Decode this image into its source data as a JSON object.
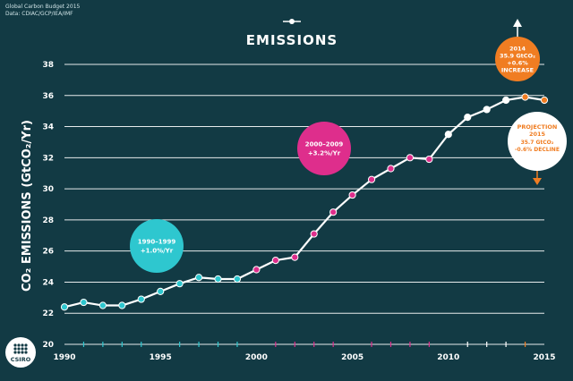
{
  "source": {
    "line1": "Global Carbon Budget 2015",
    "line2": "Data: CDIAC/GCP/IEA/IMF"
  },
  "logo": {
    "text": "CSIRO"
  },
  "colors": {
    "background": "#123a44",
    "line": "#ffffff",
    "period_1990s": "#2ec7cf",
    "period_2000s": "#de2e8c",
    "period_2010s": "#ffffff",
    "orange": "#f07d22"
  },
  "chart_data": {
    "type": "line",
    "title": "EMISSIONS",
    "ylabel": "CO₂ EMISSIONS (GtCO₂/Yr)",
    "xlabel": "",
    "xlim": [
      1990,
      2015
    ],
    "ylim": [
      20,
      38
    ],
    "x_ticks": [
      1990,
      1995,
      2000,
      2005,
      2010,
      2015
    ],
    "y_ticks": [
      20,
      22,
      24,
      26,
      28,
      30,
      32,
      34,
      36,
      38
    ],
    "grid": true,
    "series": [
      {
        "x": [
          1990,
          1991,
          1992,
          1993,
          1994,
          1995,
          1996,
          1997,
          1998,
          1999,
          2000,
          2001,
          2002,
          2003,
          2004,
          2005,
          2006,
          2007,
          2008,
          2009,
          2010,
          2011,
          2012,
          2013,
          2014,
          2015
        ],
        "y": [
          22.4,
          22.7,
          22.5,
          22.5,
          22.9,
          23.4,
          23.9,
          24.3,
          24.2,
          24.2,
          24.8,
          25.4,
          25.6,
          27.1,
          28.5,
          29.6,
          30.6,
          31.3,
          32.0,
          31.9,
          33.5,
          34.6,
          35.1,
          35.7,
          35.9,
          35.7
        ]
      }
    ],
    "annotations": [
      {
        "lines": [
          "1990–1999",
          "+1.0%/Yr"
        ]
      },
      {
        "lines": [
          "2000–2009",
          "+3.2%/Yr"
        ]
      },
      {
        "lines": [
          "2014",
          "35.9 GtCO₂",
          "+0.6%",
          "INCREASE"
        ]
      },
      {
        "lines": [
          "PROJECTION",
          "2015",
          "35.7 GtCO₂",
          "-0.6% DECLINE"
        ]
      }
    ]
  }
}
